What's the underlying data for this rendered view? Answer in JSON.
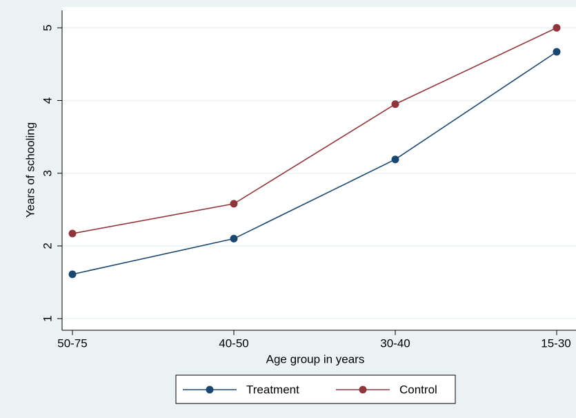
{
  "chart_data": {
    "type": "line",
    "x_label": "Age group in years",
    "y_label": "Years of schooling",
    "categories": [
      "50-75",
      "40-50",
      "30-40",
      "15-30"
    ],
    "series": [
      {
        "name": "Treatment",
        "color": "#1a476f",
        "values": [
          1.61,
          2.1,
          3.19,
          4.67
        ]
      },
      {
        "name": "Control",
        "color": "#90353b",
        "values": [
          2.17,
          2.58,
          3.95,
          5.0
        ]
      }
    ],
    "ylim": [
      0.84,
      5.24
    ],
    "yticks": [
      1,
      2,
      3,
      4,
      5
    ],
    "grid": true,
    "legend": "bottom"
  }
}
